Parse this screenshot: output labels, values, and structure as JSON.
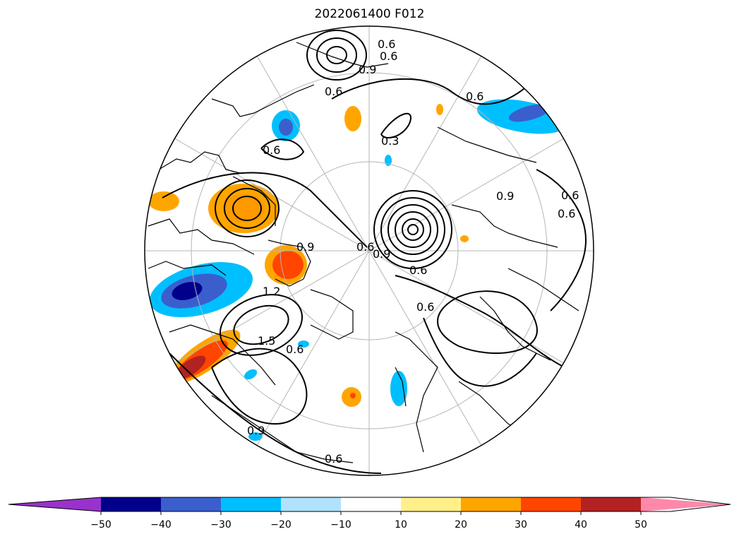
{
  "title": "2022061400 F012",
  "map": {
    "projection": "north-polar-stereographic",
    "contour_labels": [
      "0.6",
      "0.6",
      "0.6",
      "0.9",
      "0.6",
      "0.6",
      "0.3",
      "0.6",
      "0.6",
      "0.6",
      "0.9",
      "1.2",
      "1.5",
      "0.6",
      "0.9",
      "0.9",
      "0.6",
      "0.6",
      "0.9",
      "0.6"
    ]
  },
  "colorbar": {
    "extend": "both",
    "bounds": [
      -60,
      -50,
      -40,
      -30,
      -20,
      -10,
      10,
      20,
      30,
      40,
      50,
      60
    ],
    "colors": [
      "#9932cc",
      "#00008b",
      "#3a5fcd",
      "#00bfff",
      "#b0e2ff",
      "#ffffff",
      "#fff08a",
      "#ffa500",
      "#ff4500",
      "#b22222",
      "#ff88aa"
    ],
    "tick_labels": [
      "−50",
      "−40",
      "−30",
      "−20",
      "−10",
      "10",
      "20",
      "30",
      "40",
      "50"
    ]
  }
}
